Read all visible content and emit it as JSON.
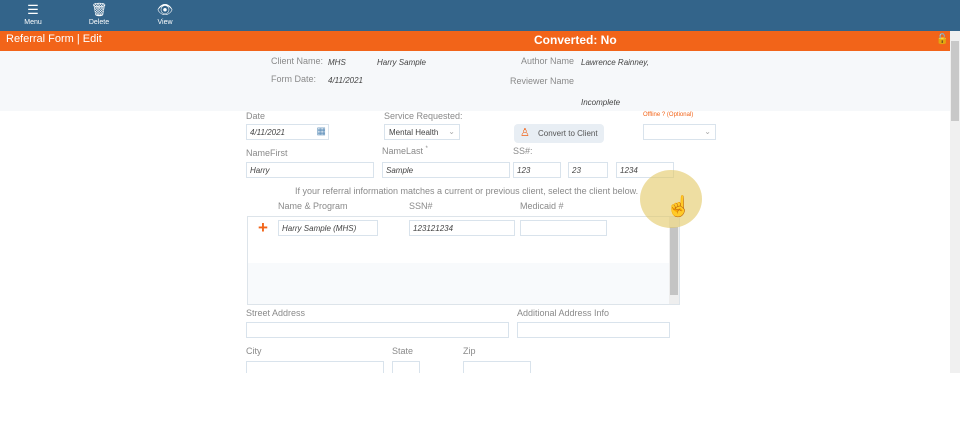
{
  "toolbar": {
    "menu": "Menu",
    "delete": "Delete",
    "view": "View"
  },
  "header": {
    "title": "Referral Form | Edit",
    "status": "Converted: No"
  },
  "summary": {
    "client_name_label": "Client Name:",
    "client_program": "MHS",
    "client_name": "Harry Sample",
    "form_date_label": "Form Date:",
    "form_date": "4/11/2021",
    "author_label": "Author Name",
    "author": "Lawrence Rainney,",
    "reviewer_label": "Reviewer Name",
    "state": "Incomplete"
  },
  "form": {
    "date_label": "Date",
    "date": "4/11/2021",
    "service_label": "Service Requested:",
    "service": "Mental Health",
    "convert_label": "Convert to Client",
    "offline_label": "Offline ? (Optional)",
    "offline": "",
    "first_label": "NameFirst",
    "first": "Harry",
    "last_label": "NameLast",
    "required": "*",
    "last": "Sample",
    "ssn_label": "SS#:",
    "ssn1": "123",
    "ssn2": "23",
    "ssn3": "1234",
    "match_note": "If your referral information matches a current or previous client, select the client below.",
    "match_cols": {
      "name": "Name & Program",
      "ssn": "SSN#",
      "medicaid": "Medicaid #"
    },
    "match_row": {
      "name": "Harry Sample (MHS)",
      "ssn": "123121234",
      "medicaid": ""
    },
    "street_label": "Street Address",
    "addl_label": "Additional Address Info",
    "city_label": "City",
    "state_label": "State",
    "zip_label": "Zip"
  },
  "colors": {
    "brand": "#33648a",
    "accent": "#f26419"
  }
}
